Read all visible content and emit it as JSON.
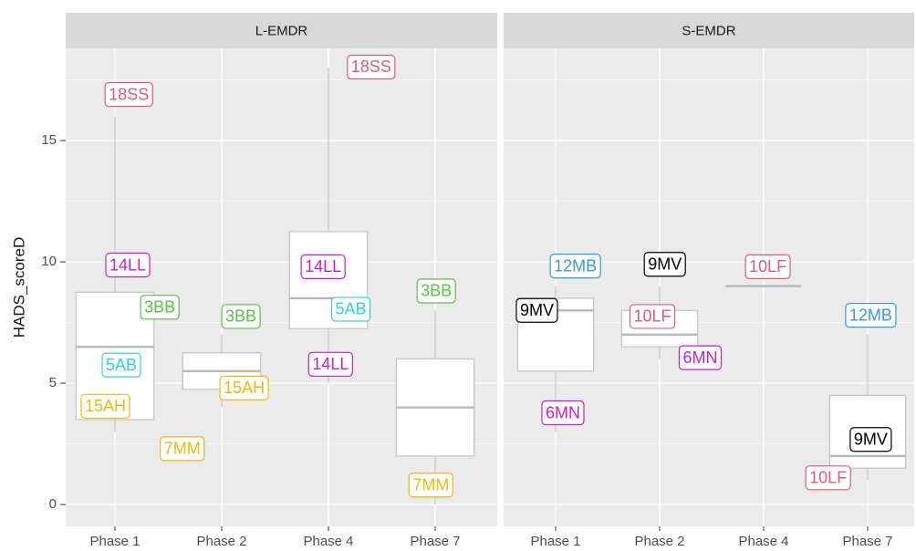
{
  "chart_data": [
    {
      "type": "boxplot",
      "title": "L-EMDR",
      "ylabel": "HADS_scoreD",
      "categories": [
        "Phase 1",
        "Phase 2",
        "Phase 4",
        "Phase 7"
      ],
      "ylim": [
        -0.9,
        18.8
      ],
      "yticks": [
        0,
        5,
        10,
        15
      ],
      "grid": true,
      "boxes": {
        "min": [
          3,
          4,
          5,
          0
        ],
        "q1": [
          3.5,
          4.75,
          7.25,
          2
        ],
        "median": [
          6.5,
          5.5,
          8.5,
          4
        ],
        "q3": [
          8.75,
          6.25,
          11.25,
          6
        ],
        "max": [
          16,
          7,
          18,
          8
        ]
      },
      "labels": [
        {
          "text": "18SS",
          "color": "#e05a72",
          "x": 1.13,
          "y": 16.9
        },
        {
          "text": "14LL",
          "color": "#c61fc6",
          "x": 1.12,
          "y": 9.87
        },
        {
          "text": "3BB",
          "color": "#56c245",
          "x": 1.42,
          "y": 8.13
        },
        {
          "text": "5AB",
          "color": "#2ad4d4",
          "x": 1.06,
          "y": 5.75
        },
        {
          "text": "15AH",
          "color": "#e8bb0c",
          "x": 0.91,
          "y": 4.05
        },
        {
          "text": "7MM",
          "color": "#e8bb0c",
          "x": 1.63,
          "y": 2.3
        },
        {
          "text": "3BB",
          "color": "#56c245",
          "x": 2.18,
          "y": 7.75
        },
        {
          "text": "15AH",
          "color": "#e8bb0c",
          "x": 2.21,
          "y": 4.8
        },
        {
          "text": "18SS",
          "color": "#e05a72",
          "x": 3.4,
          "y": 18.03
        },
        {
          "text": "14LL",
          "color": "#c61fc6",
          "x": 2.95,
          "y": 9.8
        },
        {
          "text": "5AB",
          "color": "#2ad4d4",
          "x": 3.21,
          "y": 8.05
        },
        {
          "text": "14LL",
          "color": "#c61fc6",
          "x": 3.02,
          "y": 5.78
        },
        {
          "text": "3BB",
          "color": "#56c245",
          "x": 4.01,
          "y": 8.8
        },
        {
          "text": "7MM",
          "color": "#e8bb0c",
          "x": 3.96,
          "y": 0.8
        }
      ]
    },
    {
      "type": "boxplot",
      "title": "S-EMDR",
      "categories": [
        "Phase 1",
        "Phase 2",
        "Phase 4",
        "Phase 7"
      ],
      "boxes": {
        "min": [
          3,
          6,
          9,
          1
        ],
        "q1": [
          5.5,
          6.5,
          9,
          1.5
        ],
        "median": [
          8,
          7,
          9,
          2
        ],
        "q3": [
          8.5,
          8,
          9,
          4.5
        ],
        "max": [
          9,
          9,
          9,
          7
        ]
      },
      "labels": [
        {
          "text": "12MB",
          "color": "#3a97dc",
          "x": 1.19,
          "y": 9.83
        },
        {
          "text": "9MV",
          "color": "#000000",
          "x": 0.82,
          "y": 8.0
        },
        {
          "text": "6MN",
          "color": "#c61fc6",
          "x": 1.07,
          "y": 3.78
        },
        {
          "text": "9MV",
          "color": "#000000",
          "x": 2.05,
          "y": 9.9
        },
        {
          "text": "10LF",
          "color": "#e05a72",
          "x": 1.93,
          "y": 7.75
        },
        {
          "text": "6MN",
          "color": "#c61fc6",
          "x": 2.39,
          "y": 6.05
        },
        {
          "text": "10LF",
          "color": "#e05a72",
          "x": 3.04,
          "y": 9.8
        },
        {
          "text": "12MB",
          "color": "#3a97dc",
          "x": 4.03,
          "y": 7.8
        },
        {
          "text": "9MV",
          "color": "#000000",
          "x": 4.03,
          "y": 2.68
        },
        {
          "text": "10LF",
          "color": "#e05a72",
          "x": 3.62,
          "y": 1.1
        }
      ]
    }
  ]
}
